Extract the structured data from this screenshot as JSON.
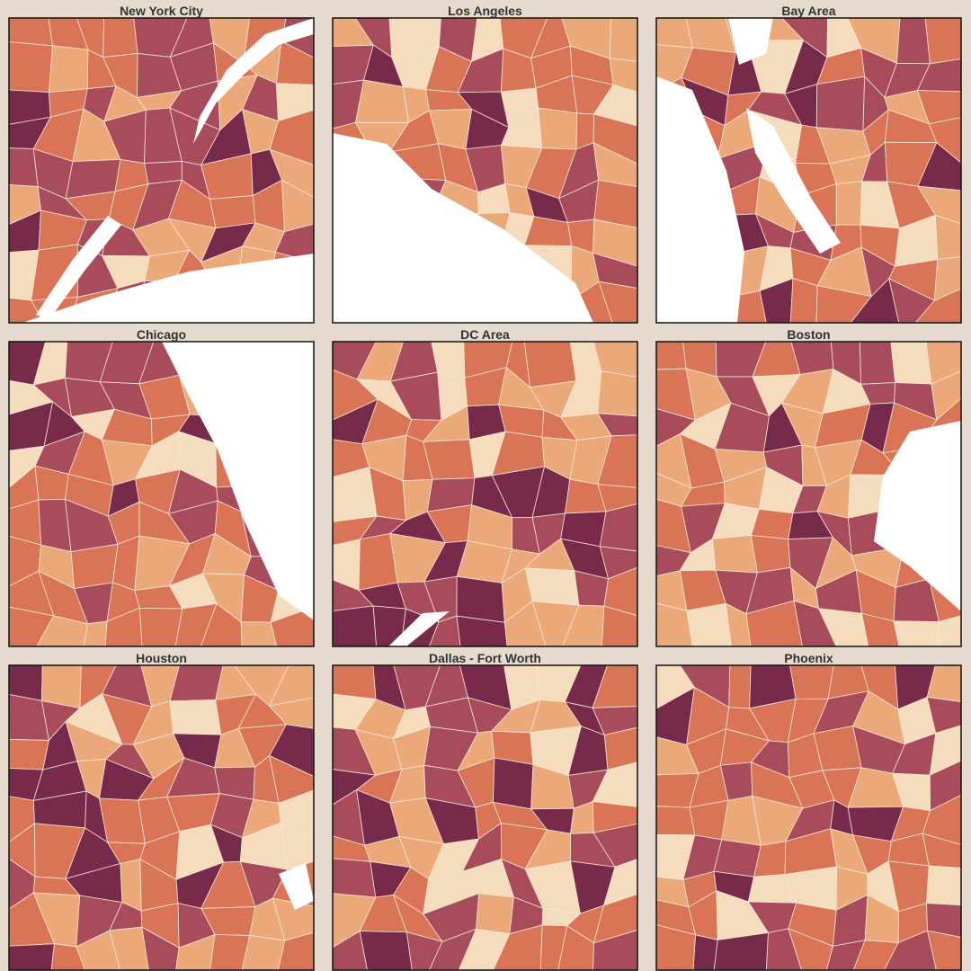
{
  "panels": [
    {
      "title": "New York City"
    },
    {
      "title": "Los Angeles"
    },
    {
      "title": "Bay Area"
    },
    {
      "title": "Chicago"
    },
    {
      "title": "DC Area"
    },
    {
      "title": "Boston"
    },
    {
      "title": "Houston"
    },
    {
      "title": "Dallas - Fort Worth"
    },
    {
      "title": "Phoenix"
    }
  ]
}
